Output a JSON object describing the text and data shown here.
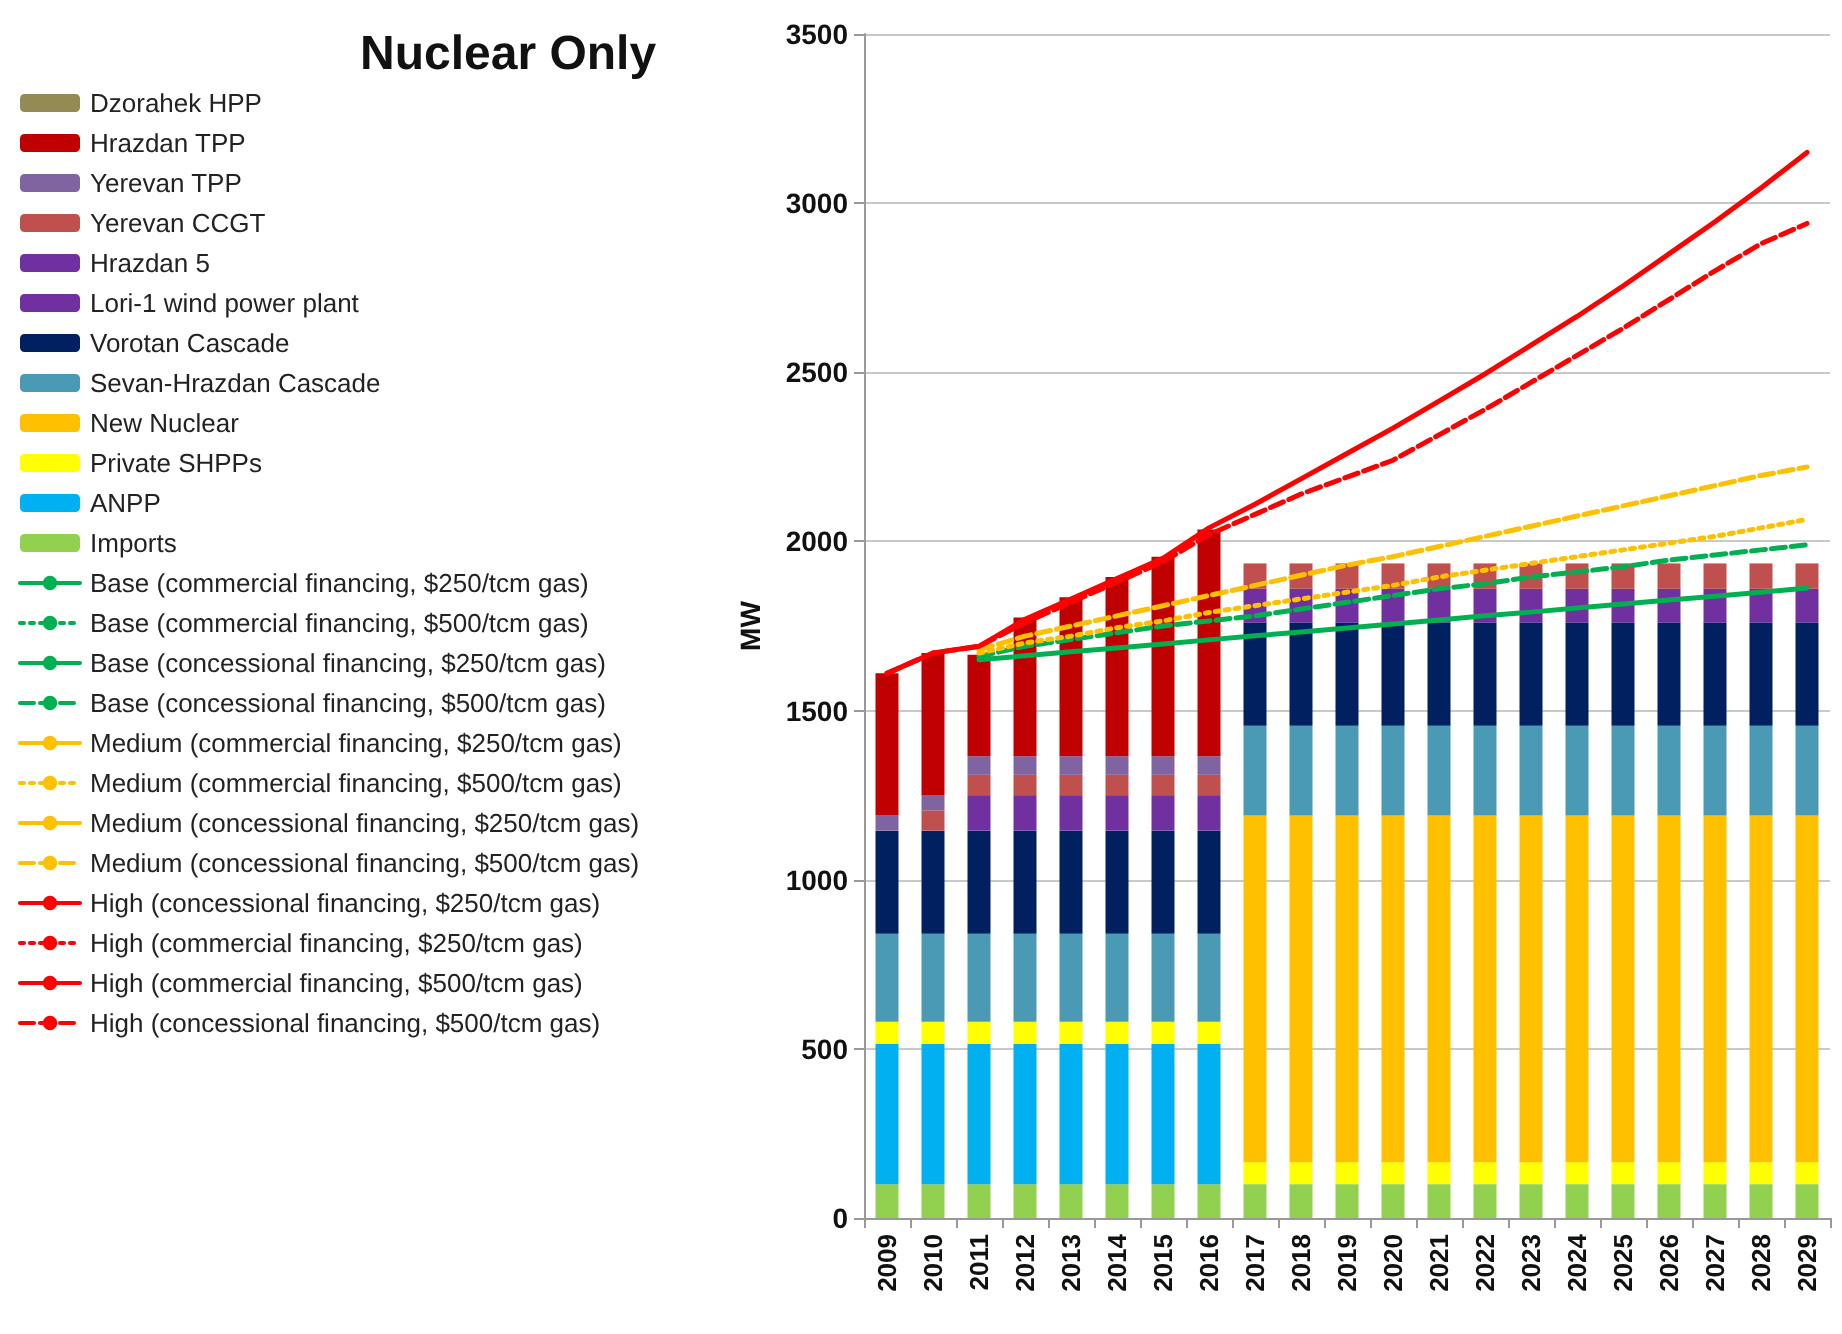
{
  "chart_data": {
    "type": "bar",
    "title": "Nuclear Only",
    "ylabel": "MW",
    "stacked": true,
    "grid": "y",
    "legend": "left",
    "categories": [
      "2009",
      "2010",
      "2011",
      "2012",
      "2013",
      "2014",
      "2015",
      "2016",
      "2017",
      "2018",
      "2019",
      "2020",
      "2021",
      "2022",
      "2023",
      "2024",
      "2025",
      "2026",
      "2027",
      "2028",
      "2029"
    ],
    "ylim": [
      0,
      3500
    ],
    "yticks": [
      0,
      500,
      1000,
      1500,
      2000,
      2500,
      3000,
      3500
    ],
    "series": [
      {
        "name": "Imports",
        "color": "#92d050",
        "values": [
          100,
          100,
          100,
          100,
          100,
          100,
          100,
          100,
          100,
          100,
          100,
          100,
          100,
          100,
          100,
          100,
          100,
          100,
          100,
          100,
          100
        ]
      },
      {
        "name": "ANPP",
        "color": "#00b0f0",
        "values": [
          415,
          415,
          415,
          415,
          415,
          415,
          415,
          415,
          null,
          null,
          null,
          null,
          null,
          null,
          null,
          null,
          null,
          null,
          null,
          null,
          null
        ]
      },
      {
        "name": "Private SHPPs",
        "color": "#ffff00",
        "values": [
          65,
          65,
          65,
          65,
          65,
          65,
          65,
          65,
          65,
          65,
          65,
          65,
          65,
          65,
          65,
          65,
          65,
          65,
          65,
          65,
          65
        ]
      },
      {
        "name": "New Nuclear",
        "color": "#ffc000",
        "values": [
          null,
          null,
          null,
          null,
          null,
          null,
          null,
          null,
          1025,
          1025,
          1025,
          1025,
          1025,
          1025,
          1025,
          1025,
          1025,
          1025,
          1025,
          1025,
          1025
        ]
      },
      {
        "name": "Sevan-Hrazdan Cascade",
        "color": "#4a9ab5",
        "values": [
          260,
          260,
          260,
          260,
          260,
          260,
          260,
          260,
          265,
          265,
          265,
          265,
          265,
          265,
          265,
          265,
          265,
          265,
          265,
          265,
          265
        ]
      },
      {
        "name": "Vorotan Cascade",
        "color": "#002060",
        "values": [
          305,
          305,
          305,
          305,
          305,
          305,
          305,
          305,
          305,
          305,
          305,
          305,
          305,
          305,
          305,
          305,
          305,
          305,
          305,
          305,
          305
        ]
      },
      {
        "name": "Lori-1 wind power plant",
        "color": "#7030a0",
        "values": [
          null,
          null,
          null,
          null,
          null,
          null,
          null,
          null,
          null,
          null,
          null,
          null,
          null,
          null,
          null,
          null,
          null,
          null,
          null,
          null,
          null
        ]
      },
      {
        "name": "Hrazdan 5",
        "color": "#7030a0",
        "values": [
          null,
          null,
          105,
          105,
          105,
          105,
          105,
          105,
          100,
          100,
          100,
          100,
          100,
          100,
          100,
          100,
          100,
          100,
          100,
          100,
          100
        ]
      },
      {
        "name": "Yerevan CCGT",
        "color": "#c0504d",
        "values": [
          null,
          60,
          60,
          60,
          60,
          60,
          60,
          60,
          75,
          75,
          75,
          75,
          75,
          75,
          75,
          75,
          75,
          75,
          75,
          75,
          75
        ]
      },
      {
        "name": "Yerevan TPP",
        "color": "#8064a2",
        "values": [
          45,
          45,
          55,
          55,
          55,
          55,
          55,
          55,
          null,
          null,
          null,
          null,
          null,
          null,
          null,
          null,
          null,
          null,
          null,
          null,
          null
        ]
      },
      {
        "name": "Hrazdan TPP",
        "color": "#c00000",
        "values": [
          420,
          420,
          300,
          410,
          470,
          530,
          590,
          670,
          null,
          null,
          null,
          null,
          null,
          null,
          null,
          null,
          null,
          null,
          null,
          null,
          null
        ]
      },
      {
        "name": "Dzorahek HPP",
        "color": "#948a54",
        "values": [
          null,
          null,
          null,
          null,
          null,
          null,
          null,
          null,
          null,
          null,
          null,
          null,
          null,
          null,
          null,
          null,
          null,
          null,
          null,
          null,
          null
        ]
      },
      {
        "type": "line",
        "line_style": "solid",
        "name": "Base (commercial financing, $250/tcm gas)",
        "color": "#00b050",
        "values": [
          null,
          null,
          1650,
          1662,
          1674,
          1685,
          1697,
          1709,
          1721,
          1732,
          1744,
          1756,
          1768,
          1780,
          1791,
          1803,
          1815,
          1827,
          1838,
          1850,
          1862
        ]
      },
      {
        "type": "line",
        "line_style": "dotted",
        "name": "Base (commercial financing, $500/tcm gas)",
        "color": "#00b050",
        "values": [
          null,
          null,
          null,
          null,
          null,
          null,
          null,
          null,
          null,
          null,
          null,
          null,
          null,
          null,
          null,
          null,
          null,
          null,
          null,
          null,
          null
        ]
      },
      {
        "type": "line",
        "line_style": "solid",
        "name": "Base (concessional financing, $250/tcm gas)",
        "color": "#00b050",
        "values": [
          null,
          null,
          null,
          null,
          null,
          null,
          null,
          null,
          null,
          null,
          null,
          null,
          null,
          null,
          null,
          null,
          null,
          null,
          null,
          null,
          null
        ]
      },
      {
        "type": "line",
        "line_style": "dashed",
        "name": "Base (concessional financing, $500/tcm gas)",
        "color": "#00b050",
        "values": [
          null,
          null,
          1660,
          1690,
          1710,
          1730,
          1750,
          1765,
          1780,
          1800,
          1820,
          1840,
          1860,
          1875,
          1895,
          1910,
          1925,
          1945,
          1960,
          1975,
          1990
        ]
      },
      {
        "type": "line",
        "line_style": "solid",
        "name": "Medium (commercial financing, $250/tcm gas)",
        "color": "#ffc000",
        "values": [
          null,
          null,
          null,
          null,
          null,
          null,
          null,
          null,
          null,
          null,
          null,
          null,
          null,
          null,
          null,
          null,
          null,
          null,
          null,
          null,
          null
        ]
      },
      {
        "type": "line",
        "line_style": "dotted",
        "name": "Medium (commercial financing, $500/tcm gas)",
        "color": "#ffc000",
        "values": [
          null,
          null,
          1670,
          1700,
          1720,
          1745,
          1765,
          1790,
          1810,
          1830,
          1850,
          1870,
          1895,
          1915,
          1935,
          1955,
          1975,
          1995,
          2015,
          2040,
          2065
        ]
      },
      {
        "type": "line",
        "line_style": "solid",
        "name": "Medium (concessional financing, $250/tcm gas)",
        "color": "#ffc000",
        "values": [
          null,
          null,
          null,
          null,
          null,
          null,
          null,
          null,
          null,
          null,
          null,
          null,
          null,
          null,
          null,
          null,
          null,
          null,
          null,
          null,
          null
        ]
      },
      {
        "type": "line",
        "line_style": "dashed",
        "name": "Medium (concessional financing, $500/tcm gas)",
        "color": "#ffc000",
        "values": [
          null,
          null,
          1680,
          1720,
          1750,
          1780,
          1810,
          1840,
          1870,
          1900,
          1930,
          1955,
          1985,
          2015,
          2045,
          2075,
          2105,
          2135,
          2165,
          2195,
          2220
        ]
      },
      {
        "type": "line",
        "line_style": "solid",
        "name": "High (concessional financing, $250/tcm gas)",
        "color": "#ff0000",
        "values": [
          1610,
          1670,
          1690,
          1770,
          1830,
          1890,
          1950,
          2040,
          2110,
          2185,
          2260,
          2335,
          2415,
          2495,
          2580,
          2665,
          2755,
          2850,
          2945,
          3045,
          3150
        ]
      },
      {
        "type": "line",
        "line_style": "dotted",
        "name": "High (commercial financing, $250/tcm gas)",
        "color": "#ff0000",
        "values": [
          null,
          null,
          null,
          null,
          null,
          null,
          null,
          null,
          null,
          null,
          null,
          null,
          null,
          null,
          null,
          null,
          null,
          null,
          null,
          null,
          null
        ]
      },
      {
        "type": "line",
        "line_style": "solid",
        "name": "High (commercial financing, $500/tcm gas)",
        "color": "#ff0000",
        "values": [
          null,
          null,
          null,
          null,
          null,
          null,
          null,
          null,
          null,
          null,
          null,
          null,
          null,
          null,
          null,
          null,
          null,
          null,
          null,
          null,
          null
        ]
      },
      {
        "type": "line",
        "line_style": "dashed",
        "name": "High (concessional financing, $500/tcm gas)",
        "color": "#ff0000",
        "values": [
          1610,
          1670,
          1690,
          1760,
          1820,
          1880,
          1940,
          2020,
          2080,
          2140,
          2190,
          2240,
          2315,
          2390,
          2470,
          2550,
          2630,
          2715,
          2800,
          2880,
          2940
        ]
      }
    ]
  }
}
